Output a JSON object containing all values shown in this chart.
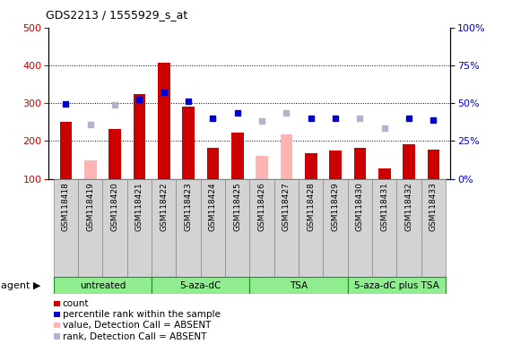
{
  "title": "GDS2213 / 1555929_s_at",
  "samples": [
    "GSM118418",
    "GSM118419",
    "GSM118420",
    "GSM118421",
    "GSM118422",
    "GSM118423",
    "GSM118424",
    "GSM118425",
    "GSM118426",
    "GSM118427",
    "GSM118428",
    "GSM118429",
    "GSM118430",
    "GSM118431",
    "GSM118432",
    "GSM118433"
  ],
  "bar_values": [
    250,
    0,
    233,
    323,
    407,
    290,
    181,
    222,
    0,
    0,
    167,
    175,
    181,
    127,
    192,
    178
  ],
  "bar_absent": [
    0,
    150,
    0,
    0,
    0,
    0,
    0,
    0,
    160,
    218,
    0,
    0,
    0,
    0,
    0,
    0
  ],
  "dot_values": [
    297,
    0,
    0,
    310,
    328,
    305,
    260,
    275,
    0,
    0,
    260,
    260,
    0,
    0,
    260,
    256
  ],
  "dot_absent": [
    0,
    243,
    295,
    0,
    0,
    0,
    0,
    0,
    253,
    275,
    0,
    0,
    260,
    235,
    0,
    0
  ],
  "bar_color": "#cc0000",
  "bar_absent_color": "#ffb3b3",
  "dot_color": "#0000cc",
  "dot_absent_color": "#b3b3cc",
  "ylim_left": [
    100,
    500
  ],
  "ylim_right": [
    0,
    100
  ],
  "yticks_left": [
    100,
    200,
    300,
    400,
    500
  ],
  "yticks_right": [
    0,
    25,
    50,
    75,
    100
  ],
  "ytick_labels_right": [
    "0%",
    "25%",
    "50%",
    "75%",
    "100%"
  ],
  "group_ranges": [
    [
      0,
      4,
      "untreated"
    ],
    [
      4,
      8,
      "5-aza-dC"
    ],
    [
      8,
      12,
      "TSA"
    ],
    [
      12,
      16,
      "5-aza-dC plus TSA"
    ]
  ],
  "group_color": "#90ee90",
  "group_border_color": "#228B22",
  "legend_items": [
    {
      "label": "count",
      "color": "#cc0000",
      "type": "rect"
    },
    {
      "label": "percentile rank within the sample",
      "color": "#0000cc",
      "type": "rect"
    },
    {
      "label": "value, Detection Call = ABSENT",
      "color": "#ffb3b3",
      "type": "rect"
    },
    {
      "label": "rank, Detection Call = ABSENT",
      "color": "#b3b3cc",
      "type": "rect"
    }
  ],
  "ylabel_left_color": "#cc0000",
  "ylabel_right_color": "#0000cc",
  "bg_color": "#ffffff",
  "plot_bg": "#ffffff",
  "gridline_color": "#000000",
  "agent_label": "agent",
  "xtick_bg_color": "#d3d3d3",
  "xtick_border_color": "#888888"
}
